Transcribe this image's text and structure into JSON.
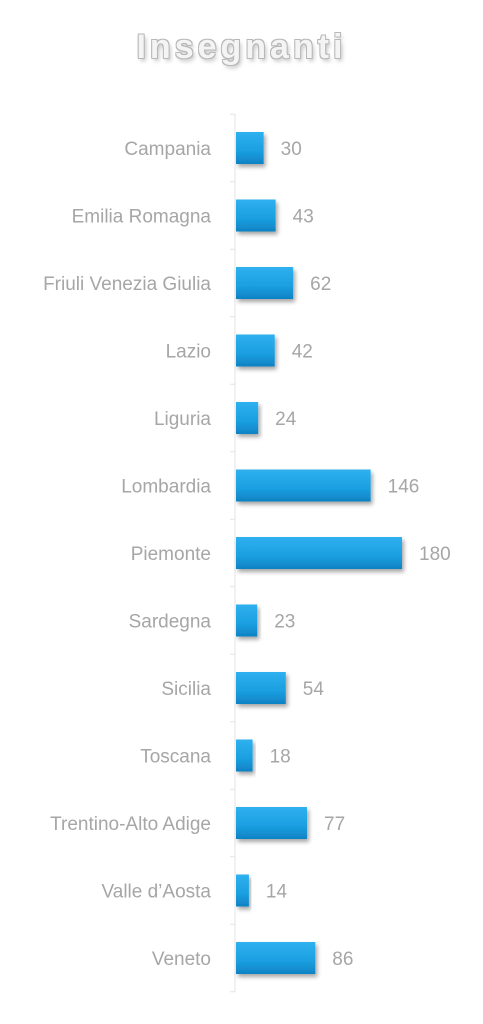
{
  "chart_data": {
    "type": "bar",
    "orientation": "horizontal",
    "title": "Insegnanti",
    "categories": [
      "Campania",
      "Emilia Romagna",
      "Friuli Venezia Giulia",
      "Lazio",
      "Liguria",
      "Lombardia",
      "Piemonte",
      "Sardegna",
      "Sicilia",
      "Toscana",
      "Trentino-Alto Adige",
      "Valle d’Aosta",
      "Veneto"
    ],
    "values": [
      30,
      43,
      62,
      42,
      24,
      146,
      180,
      23,
      54,
      18,
      77,
      14,
      86
    ],
    "xlim": [
      0,
      180
    ],
    "grid": false,
    "legend": "none",
    "data_labels": true,
    "colors": {
      "bar": "#1a9fe0",
      "bar_dark": "#0f7fc0",
      "label": "#a6a6a6",
      "axis": "#e3e3e3"
    }
  }
}
